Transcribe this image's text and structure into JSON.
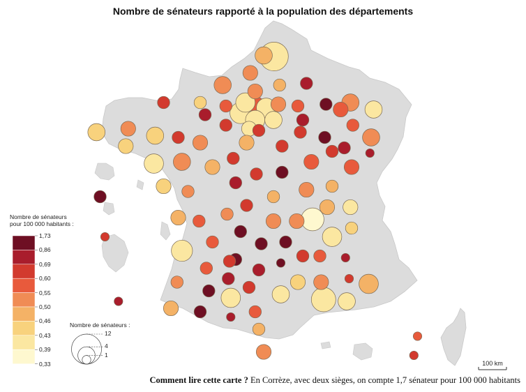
{
  "title": "Nombre de sénateurs rapporté à la population des départements",
  "footnote": {
    "lead": "Comment lire cette carte ?",
    "text": "En Corrèze, avec deux sièges, on compte 1,7 sénateur pour 100 000 habitants"
  },
  "legend": {
    "color_title_line1": "Nombre de sénateurs",
    "color_title_line2": "pour 100 000 habitants :",
    "ticks": [
      "1,73",
      "0,86",
      "0,69",
      "0,60",
      "0,55",
      "0,50",
      "0,46",
      "0,43",
      "0,39",
      "0,33"
    ],
    "classes": [
      {
        "color": "#6e0f23"
      },
      {
        "color": "#a91d2c"
      },
      {
        "color": "#d23a2e"
      },
      {
        "color": "#e85a3c"
      },
      {
        "color": "#f08c55"
      },
      {
        "color": "#f4b266"
      },
      {
        "color": "#f8d27d"
      },
      {
        "color": "#fbe7a1"
      },
      {
        "color": "#fef8cf"
      }
    ],
    "size_title": "Nombre de sénateurs :",
    "size_ticks": [
      "12",
      "4",
      "1"
    ]
  },
  "scale_bar": {
    "label": "100 km"
  },
  "colors": {
    "land": "#dcdcdc",
    "border": "#ffffff",
    "circle_stroke": "#7a6a55"
  },
  "chart_data": {
    "type": "proportional-symbol-map",
    "title": "Nombre de sénateurs rapporté à la population des départements",
    "size_variable": "Nombre de sénateurs",
    "color_variable": "Nombre de sénateurs pour 100 000 habitants",
    "color_breaks": [
      0.33,
      0.39,
      0.43,
      0.46,
      0.5,
      0.55,
      0.6,
      0.69,
      0.86,
      1.73
    ],
    "points": [
      {
        "lon": 2.8,
        "lat": 50.45,
        "seats": 4,
        "ratio": 0.47
      },
      {
        "lon": 3.22,
        "lat": 50.42,
        "seats": 11,
        "ratio": 0.42
      },
      {
        "lon": 2.25,
        "lat": 49.95,
        "seats": 3,
        "ratio": 0.52
      },
      {
        "lon": 3.45,
        "lat": 49.6,
        "seats": 2,
        "ratio": 0.47
      },
      {
        "lon": 4.55,
        "lat": 49.65,
        "seats": 2,
        "ratio": 0.76
      },
      {
        "lon": 1.12,
        "lat": 49.6,
        "seats": 4,
        "ratio": 0.5
      },
      {
        "lon": 0.2,
        "lat": 49.1,
        "seats": 2,
        "ratio": 0.44
      },
      {
        "lon": -1.3,
        "lat": 49.1,
        "seats": 2,
        "ratio": 0.63
      },
      {
        "lon": 2.45,
        "lat": 49.42,
        "seats": 3,
        "ratio": 0.5
      },
      {
        "lon": 1.25,
        "lat": 49.0,
        "seats": 2,
        "ratio": 0.55
      },
      {
        "lon": 2.05,
        "lat": 49.1,
        "seats": 5,
        "ratio": 0.4
      },
      {
        "lon": 1.85,
        "lat": 48.8,
        "seats": 6,
        "ratio": 0.4
      },
      {
        "lon": 2.35,
        "lat": 48.86,
        "seats": 12,
        "ratio": 0.57
      },
      {
        "lon": 2.9,
        "lat": 48.95,
        "seats": 5,
        "ratio": 0.4
      },
      {
        "lon": 2.45,
        "lat": 48.6,
        "seats": 5,
        "ratio": 0.39
      },
      {
        "lon": 3.2,
        "lat": 48.6,
        "seats": 4,
        "ratio": 0.42
      },
      {
        "lon": 2.2,
        "lat": 48.35,
        "seats": 3,
        "ratio": 0.4
      },
      {
        "lon": 3.4,
        "lat": 49.05,
        "seats": 3,
        "ratio": 0.5
      },
      {
        "lon": 4.2,
        "lat": 49.0,
        "seats": 2,
        "ratio": 0.55
      },
      {
        "lon": 4.4,
        "lat": 48.6,
        "seats": 2,
        "ratio": 0.72
      },
      {
        "lon": 5.35,
        "lat": 49.05,
        "seats": 2,
        "ratio": 0.87
      },
      {
        "lon": 5.95,
        "lat": 48.9,
        "seats": 3,
        "ratio": 0.57
      },
      {
        "lon": 6.35,
        "lat": 49.1,
        "seats": 4,
        "ratio": 0.5
      },
      {
        "lon": 7.3,
        "lat": 48.9,
        "seats": 4,
        "ratio": 0.4
      },
      {
        "lon": 6.45,
        "lat": 48.45,
        "seats": 2,
        "ratio": 0.55
      },
      {
        "lon": 7.2,
        "lat": 48.1,
        "seats": 4,
        "ratio": 0.52
      },
      {
        "lon": 7.15,
        "lat": 47.65,
        "seats": 1,
        "ratio": 0.75
      },
      {
        "lon": 6.1,
        "lat": 47.8,
        "seats": 2,
        "ratio": 0.78
      },
      {
        "lon": 6.4,
        "lat": 47.25,
        "seats": 3,
        "ratio": 0.57
      },
      {
        "lon": 5.3,
        "lat": 48.1,
        "seats": 2,
        "ratio": 0.88
      },
      {
        "lon": 4.3,
        "lat": 48.25,
        "seats": 2,
        "ratio": 0.62
      },
      {
        "lon": 2.6,
        "lat": 48.3,
        "seats": 2,
        "ratio": 0.6
      },
      {
        "lon": 0.4,
        "lat": 48.75,
        "seats": 2,
        "ratio": 0.72
      },
      {
        "lon": 1.25,
        "lat": 48.45,
        "seats": 2,
        "ratio": 0.62
      },
      {
        "lon": 2.1,
        "lat": 47.95,
        "seats": 3,
        "ratio": 0.47
      },
      {
        "lon": 1.55,
        "lat": 47.5,
        "seats": 2,
        "ratio": 0.6
      },
      {
        "lon": 0.7,
        "lat": 47.25,
        "seats": 3,
        "ratio": 0.46
      },
      {
        "lon": 0.2,
        "lat": 47.95,
        "seats": 3,
        "ratio": 0.52
      },
      {
        "lon": -0.7,
        "lat": 48.1,
        "seats": 2,
        "ratio": 0.6
      },
      {
        "lon": -1.65,
        "lat": 48.15,
        "seats": 4,
        "ratio": 0.43
      },
      {
        "lon": -2.75,
        "lat": 48.35,
        "seats": 3,
        "ratio": 0.5
      },
      {
        "lon": -4.05,
        "lat": 48.25,
        "seats": 4,
        "ratio": 0.45
      },
      {
        "lon": -2.85,
        "lat": 47.85,
        "seats": 3,
        "ratio": 0.43
      },
      {
        "lon": -1.7,
        "lat": 47.35,
        "seats": 5,
        "ratio": 0.4
      },
      {
        "lon": -0.55,
        "lat": 47.4,
        "seats": 4,
        "ratio": 0.5
      },
      {
        "lon": -1.3,
        "lat": 46.7,
        "seats": 3,
        "ratio": 0.45
      },
      {
        "lon": -0.3,
        "lat": 46.55,
        "seats": 2,
        "ratio": 0.52
      },
      {
        "lon": -0.7,
        "lat": 45.8,
        "seats": 3,
        "ratio": 0.47
      },
      {
        "lon": 0.15,
        "lat": 45.7,
        "seats": 2,
        "ratio": 0.55
      },
      {
        "lon": 1.3,
        "lat": 45.9,
        "seats": 2,
        "ratio": 0.52
      },
      {
        "lon": 1.85,
        "lat": 45.4,
        "seats": 2,
        "ratio": 1.73
      },
      {
        "lon": 2.1,
        "lat": 46.15,
        "seats": 2,
        "ratio": 0.6
      },
      {
        "lon": 1.65,
        "lat": 46.8,
        "seats": 2,
        "ratio": 0.85
      },
      {
        "lon": 2.5,
        "lat": 47.05,
        "seats": 2,
        "ratio": 0.6
      },
      {
        "lon": 3.55,
        "lat": 47.85,
        "seats": 2,
        "ratio": 0.6
      },
      {
        "lon": 3.55,
        "lat": 47.1,
        "seats": 2,
        "ratio": 0.87
      },
      {
        "lon": 4.75,
        "lat": 47.4,
        "seats": 3,
        "ratio": 0.57
      },
      {
        "lon": 5.6,
        "lat": 47.7,
        "seats": 2,
        "ratio": 0.68
      },
      {
        "lon": 5.6,
        "lat": 46.7,
        "seats": 2,
        "ratio": 0.47
      },
      {
        "lon": 4.55,
        "lat": 46.6,
        "seats": 3,
        "ratio": 0.5
      },
      {
        "lon": 3.2,
        "lat": 46.4,
        "seats": 2,
        "ratio": 0.48
      },
      {
        "lon": 4.8,
        "lat": 45.75,
        "seats": 7,
        "ratio": 0.38
      },
      {
        "lon": 5.4,
        "lat": 46.1,
        "seats": 3,
        "ratio": 0.47
      },
      {
        "lon": 6.35,
        "lat": 46.1,
        "seats": 3,
        "ratio": 0.4
      },
      {
        "lon": 6.4,
        "lat": 45.5,
        "seats": 2,
        "ratio": 0.45
      },
      {
        "lon": 5.6,
        "lat": 45.25,
        "seats": 5,
        "ratio": 0.4
      },
      {
        "lon": 4.15,
        "lat": 45.7,
        "seats": 3,
        "ratio": 0.5
      },
      {
        "lon": 3.2,
        "lat": 45.7,
        "seats": 3,
        "ratio": 0.5
      },
      {
        "lon": 2.7,
        "lat": 45.05,
        "seats": 2,
        "ratio": 1.05
      },
      {
        "lon": 3.7,
        "lat": 45.1,
        "seats": 2,
        "ratio": 0.9
      },
      {
        "lon": 1.65,
        "lat": 44.6,
        "seats": 2,
        "ratio": 1.15
      },
      {
        "lon": 0.7,
        "lat": 45.1,
        "seats": 2,
        "ratio": 0.55
      },
      {
        "lon": -0.55,
        "lat": 44.85,
        "seats": 6,
        "ratio": 0.4
      },
      {
        "lon": 0.45,
        "lat": 44.35,
        "seats": 2,
        "ratio": 0.55
      },
      {
        "lon": -0.75,
        "lat": 43.95,
        "seats": 2,
        "ratio": 0.52
      },
      {
        "lon": 1.4,
        "lat": 44.55,
        "seats": 2,
        "ratio": 0.65
      },
      {
        "lon": 2.6,
        "lat": 44.3,
        "seats": 2,
        "ratio": 0.72
      },
      {
        "lon": 3.5,
        "lat": 44.5,
        "seats": 1,
        "ratio": 1.3
      },
      {
        "lon": 4.4,
        "lat": 44.7,
        "seats": 2,
        "ratio": 0.62
      },
      {
        "lon": 5.1,
        "lat": 44.7,
        "seats": 2,
        "ratio": 0.55
      },
      {
        "lon": 6.15,
        "lat": 44.65,
        "seats": 1,
        "ratio": 0.7
      },
      {
        "lon": 6.3,
        "lat": 44.05,
        "seats": 1,
        "ratio": 0.63
      },
      {
        "lon": 7.1,
        "lat": 43.9,
        "seats": 5,
        "ratio": 0.47
      },
      {
        "lon": 6.2,
        "lat": 43.4,
        "seats": 4,
        "ratio": 0.4
      },
      {
        "lon": 5.25,
        "lat": 43.45,
        "seats": 8,
        "ratio": 0.4
      },
      {
        "lon": 5.15,
        "lat": 43.95,
        "seats": 3,
        "ratio": 0.52
      },
      {
        "lon": 4.2,
        "lat": 43.95,
        "seats": 3,
        "ratio": 0.43
      },
      {
        "lon": 3.5,
        "lat": 43.6,
        "seats": 4,
        "ratio": 0.41
      },
      {
        "lon": 2.2,
        "lat": 43.8,
        "seats": 2,
        "ratio": 0.6
      },
      {
        "lon": 1.35,
        "lat": 44.05,
        "seats": 2,
        "ratio": 0.78
      },
      {
        "lon": 1.45,
        "lat": 43.5,
        "seats": 5,
        "ratio": 0.42
      },
      {
        "lon": 0.55,
        "lat": 43.7,
        "seats": 2,
        "ratio": 1.05
      },
      {
        "lon": -1.0,
        "lat": 43.2,
        "seats": 3,
        "ratio": 0.47
      },
      {
        "lon": 0.2,
        "lat": 43.1,
        "seats": 2,
        "ratio": 0.92
      },
      {
        "lon": 1.45,
        "lat": 42.95,
        "seats": 1,
        "ratio": 0.7
      },
      {
        "lon": 2.45,
        "lat": 43.1,
        "seats": 2,
        "ratio": 0.55
      },
      {
        "lon": 2.6,
        "lat": 42.6,
        "seats": 2,
        "ratio": 0.46
      },
      {
        "lon": 9.1,
        "lat": 42.4,
        "seats": 1,
        "ratio": 0.55
      },
      {
        "lon": 8.95,
        "lat": 41.85,
        "seats": 1,
        "ratio": 0.65
      },
      {
        "lon": -3.9,
        "lat": 46.4,
        "seats": 2,
        "ratio": 1.1
      },
      {
        "lon": -3.7,
        "lat": 45.25,
        "seats": 1,
        "ratio": 0.6
      },
      {
        "lon": -3.15,
        "lat": 43.4,
        "seats": 1,
        "ratio": 0.8
      },
      {
        "lon": 2.8,
        "lat": 41.95,
        "seats": 3,
        "ratio": 0.5
      }
    ]
  }
}
